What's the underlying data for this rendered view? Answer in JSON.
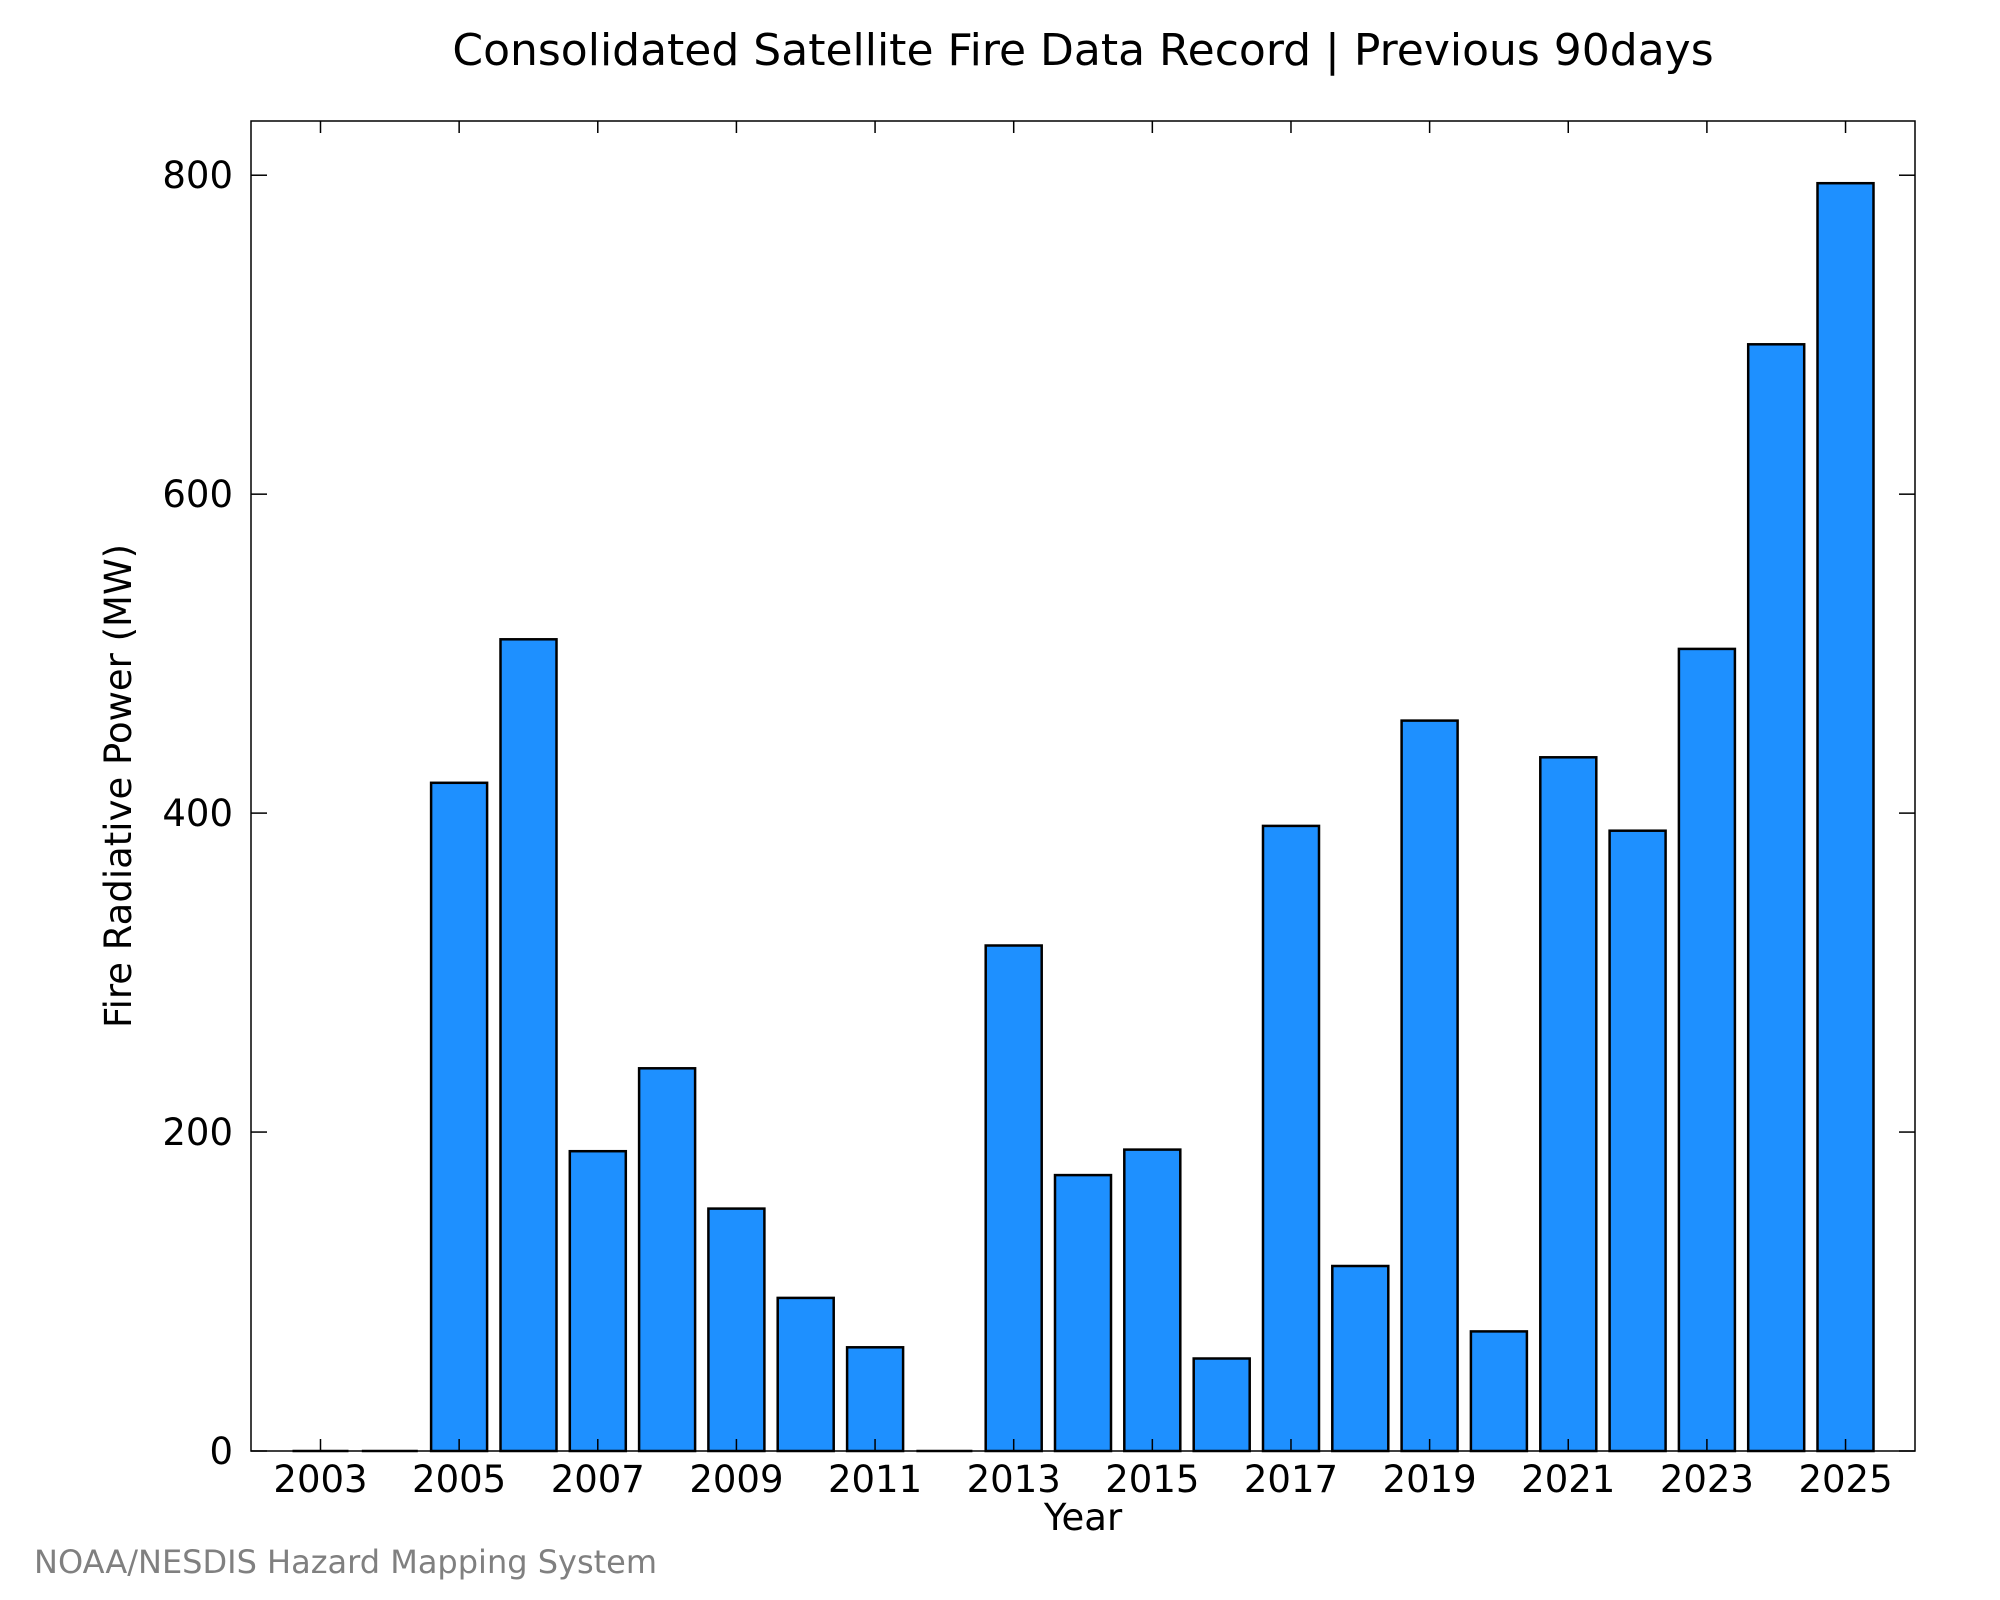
{
  "chart_data": {
    "type": "bar",
    "title": "Consolidated Satellite Fire Data Record | Previous 90days",
    "xlabel": "Year",
    "ylabel": "Fire Radiative Power (MW)",
    "categories": [
      "2003",
      "2004",
      "2005",
      "2006",
      "2007",
      "2008",
      "2009",
      "2010",
      "2011",
      "2012",
      "2013",
      "2014",
      "2015",
      "2016",
      "2017",
      "2018",
      "2019",
      "2020",
      "2021",
      "2022",
      "2023",
      "2024",
      "2025"
    ],
    "values": [
      0,
      0,
      419,
      509,
      188,
      240,
      152,
      96,
      65,
      0,
      317,
      173,
      189,
      58,
      392,
      116,
      458,
      75,
      435,
      389,
      503,
      694,
      795
    ],
    "x_tick_labels": [
      "2003",
      "2005",
      "2007",
      "2009",
      "2011",
      "2013",
      "2015",
      "2017",
      "2019",
      "2021",
      "2023",
      "2025"
    ],
    "y_ticks": [
      0,
      200,
      400,
      600,
      800
    ],
    "ylim": [
      0,
      834
    ],
    "bar_color": "#1E90FF",
    "bar_edge_color": "#000000",
    "grid": false
  },
  "footer": "NOAA/NESDIS Hazard Mapping System"
}
